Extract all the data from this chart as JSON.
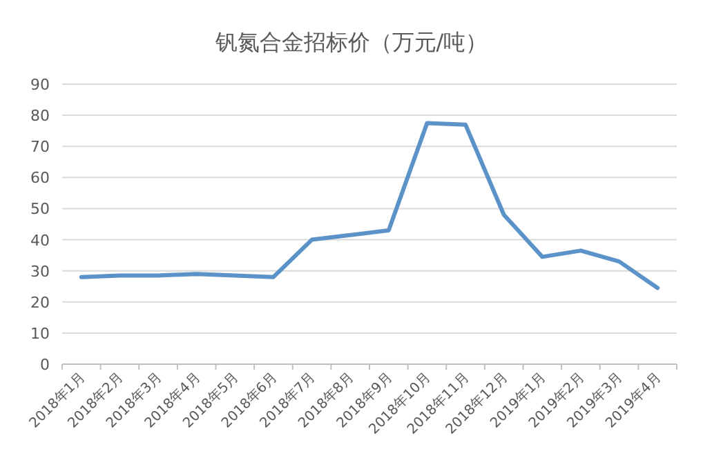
{
  "chart_data": {
    "type": "line",
    "title": "钒氮合金招标价（万元/吨）",
    "categories": [
      "2018年1月",
      "2018年2月",
      "2018年3月",
      "2018年4月",
      "2018年5月",
      "2018年6月",
      "2018年7月",
      "2018年8月",
      "2018年9月",
      "2018年10月",
      "2018年11月",
      "2018年12月",
      "2019年1月",
      "2019年2月",
      "2019年3月",
      "2019年4月"
    ],
    "series": [
      {
        "color": "#5b93c9",
        "values": [
          28,
          28.5,
          28.5,
          29,
          28.5,
          28,
          40,
          41.5,
          43,
          77.5,
          77,
          48,
          34.5,
          36.5,
          33,
          24.5
        ]
      }
    ],
    "ylim": [
      0,
      90
    ],
    "yticks": [
      0,
      10,
      20,
      30,
      40,
      50,
      60,
      70,
      80,
      90
    ],
    "grid": "y",
    "marker": "none",
    "line_style": "solid"
  }
}
